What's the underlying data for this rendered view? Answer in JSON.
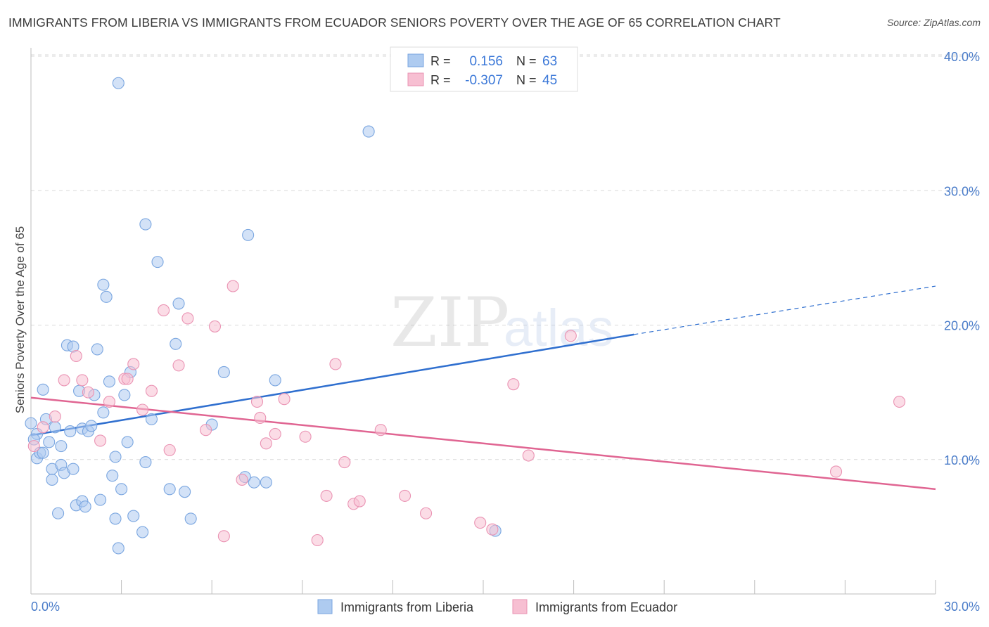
{
  "title": "IMMIGRANTS FROM LIBERIA VS IMMIGRANTS FROM ECUADOR SENIORS POVERTY OVER THE AGE OF 65 CORRELATION CHART",
  "source": "Source: ZipAtlas.com",
  "watermark": {
    "zip": "ZIP",
    "atlas": "atlas"
  },
  "legend_box": {
    "rows": [
      {
        "r_label": "R =",
        "r_value": "0.156",
        "n_label": "N =",
        "n_value": "63"
      },
      {
        "r_label": "R =",
        "r_value": "-0.307",
        "n_label": "N =",
        "n_value": "45"
      }
    ]
  },
  "colors": {
    "liberia_fill": "#aecbf0",
    "liberia_stroke": "#7aa6e0",
    "liberia_line": "#2f6fcf",
    "ecuador_fill": "#f7bfd2",
    "ecuador_stroke": "#ea93b3",
    "ecuador_line": "#e06592",
    "tick_text": "#4a7cc9",
    "grid": "#d9d9d9"
  },
  "chart_data": {
    "type": "scatter",
    "title": "IMMIGRANTS FROM LIBERIA VS IMMIGRANTS FROM ECUADOR SENIORS POVERTY OVER THE AGE OF 65 CORRELATION CHART",
    "xlabel": "",
    "ylabel": "Seniors Poverty Over the Age of 65",
    "xlim": [
      0,
      30
    ],
    "ylim": [
      0,
      40
    ],
    "x_tick_labels": [
      "0.0%",
      "30.0%"
    ],
    "y_ticks": [
      10,
      20,
      30,
      40
    ],
    "y_tick_labels": [
      "10.0%",
      "20.0%",
      "30.0%",
      "40.0%"
    ],
    "grid": true,
    "series": [
      {
        "name": "Immigrants from Liberia",
        "R": 0.156,
        "N": 63,
        "trend": {
          "x": [
            0,
            20
          ],
          "y": [
            11.8,
            19.3
          ],
          "dashed_to_x": 30,
          "dashed_to_y": 22.9
        },
        "points": [
          [
            0.0,
            12.7
          ],
          [
            0.2,
            11.9
          ],
          [
            0.2,
            10.1
          ],
          [
            0.3,
            10.5
          ],
          [
            0.4,
            15.2
          ],
          [
            0.4,
            10.5
          ],
          [
            0.5,
            13.0
          ],
          [
            0.6,
            11.3
          ],
          [
            0.7,
            9.3
          ],
          [
            0.7,
            8.5
          ],
          [
            0.8,
            12.4
          ],
          [
            0.9,
            6.0
          ],
          [
            1.0,
            9.6
          ],
          [
            1.0,
            11.0
          ],
          [
            1.1,
            9.0
          ],
          [
            1.2,
            18.5
          ],
          [
            1.3,
            12.1
          ],
          [
            1.4,
            18.4
          ],
          [
            1.4,
            9.3
          ],
          [
            1.5,
            6.6
          ],
          [
            1.6,
            15.1
          ],
          [
            1.7,
            12.3
          ],
          [
            1.7,
            6.9
          ],
          [
            1.8,
            6.5
          ],
          [
            1.9,
            12.1
          ],
          [
            2.0,
            12.5
          ],
          [
            2.1,
            14.8
          ],
          [
            2.2,
            18.2
          ],
          [
            2.3,
            7.0
          ],
          [
            2.4,
            13.5
          ],
          [
            2.4,
            23.0
          ],
          [
            2.5,
            22.1
          ],
          [
            2.6,
            15.8
          ],
          [
            2.7,
            8.8
          ],
          [
            2.8,
            10.2
          ],
          [
            2.8,
            5.6
          ],
          [
            2.9,
            3.4
          ],
          [
            2.9,
            38.0
          ],
          [
            3.0,
            7.8
          ],
          [
            3.1,
            14.8
          ],
          [
            3.2,
            11.3
          ],
          [
            3.3,
            16.5
          ],
          [
            3.4,
            5.8
          ],
          [
            3.7,
            4.6
          ],
          [
            3.8,
            9.8
          ],
          [
            3.8,
            27.5
          ],
          [
            4.0,
            13.0
          ],
          [
            4.2,
            24.7
          ],
          [
            4.6,
            7.8
          ],
          [
            4.8,
            18.6
          ],
          [
            4.9,
            21.6
          ],
          [
            5.1,
            7.6
          ],
          [
            5.3,
            5.6
          ],
          [
            6.0,
            12.6
          ],
          [
            6.4,
            16.5
          ],
          [
            7.1,
            8.7
          ],
          [
            7.2,
            26.7
          ],
          [
            7.4,
            8.3
          ],
          [
            7.8,
            8.3
          ],
          [
            8.1,
            15.9
          ],
          [
            11.2,
            34.4
          ],
          [
            15.4,
            4.7
          ],
          [
            0.1,
            11.5
          ]
        ]
      },
      {
        "name": "Immigrants from Ecuador",
        "R": -0.307,
        "N": 45,
        "trend": {
          "x": [
            0,
            30
          ],
          "y": [
            14.6,
            7.8
          ]
        },
        "points": [
          [
            0.1,
            11.0
          ],
          [
            0.4,
            12.4
          ],
          [
            0.8,
            13.2
          ],
          [
            1.1,
            15.9
          ],
          [
            1.5,
            17.7
          ],
          [
            1.7,
            15.9
          ],
          [
            1.9,
            15.0
          ],
          [
            2.3,
            11.4
          ],
          [
            2.6,
            14.3
          ],
          [
            3.1,
            16.0
          ],
          [
            3.2,
            16.0
          ],
          [
            3.4,
            17.1
          ],
          [
            3.7,
            13.7
          ],
          [
            4.0,
            15.1
          ],
          [
            4.4,
            21.1
          ],
          [
            4.6,
            10.7
          ],
          [
            4.9,
            17.0
          ],
          [
            5.2,
            20.5
          ],
          [
            5.8,
            12.2
          ],
          [
            6.1,
            19.9
          ],
          [
            6.4,
            4.3
          ],
          [
            6.7,
            22.9
          ],
          [
            7.0,
            8.5
          ],
          [
            7.5,
            14.3
          ],
          [
            7.6,
            13.1
          ],
          [
            7.8,
            11.2
          ],
          [
            8.1,
            11.9
          ],
          [
            8.4,
            14.5
          ],
          [
            9.1,
            11.7
          ],
          [
            9.5,
            4.0
          ],
          [
            9.8,
            7.3
          ],
          [
            10.1,
            17.1
          ],
          [
            10.4,
            9.8
          ],
          [
            10.7,
            6.7
          ],
          [
            10.9,
            6.9
          ],
          [
            11.6,
            12.2
          ],
          [
            12.4,
            7.3
          ],
          [
            13.1,
            6.0
          ],
          [
            14.9,
            5.3
          ],
          [
            15.3,
            4.8
          ],
          [
            16.0,
            15.6
          ],
          [
            16.5,
            10.3
          ],
          [
            17.9,
            19.2
          ],
          [
            26.7,
            9.1
          ],
          [
            28.8,
            14.3
          ]
        ]
      }
    ]
  }
}
